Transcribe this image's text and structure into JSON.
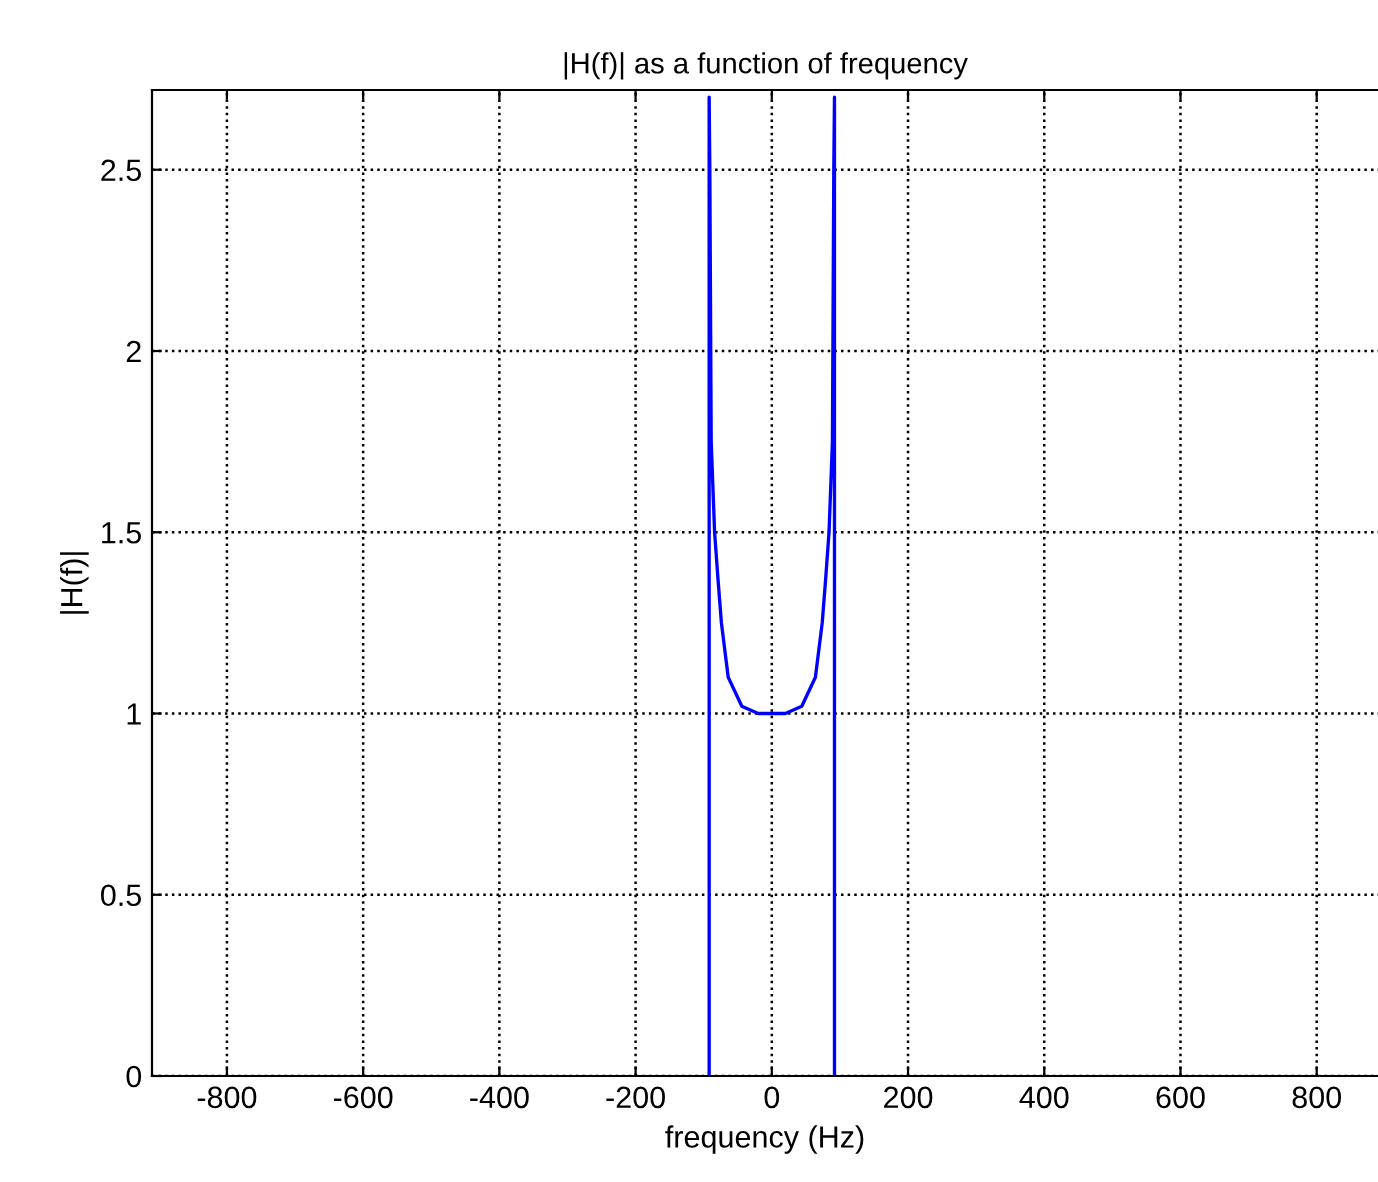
{
  "chart_data": {
    "type": "line",
    "title": "|H(f)| as a function of frequency",
    "xlabel": "frequency (Hz)",
    "ylabel": "|H(f)|",
    "series": [
      {
        "color": "#0000ff",
        "x": [
          -92,
          -92,
          -91,
          -89,
          -84,
          -79,
          -74,
          -64,
          -44,
          -20,
          0,
          20,
          44,
          64,
          74,
          79,
          84,
          89,
          91,
          92,
          92
        ],
        "values": [
          0,
          2.7,
          2.5,
          1.75,
          1.5,
          1.37,
          1.25,
          1.1,
          1.02,
          1.0,
          1.0,
          1.0,
          1.02,
          1.1,
          1.25,
          1.37,
          1.5,
          1.75,
          2.5,
          2.7,
          0
        ]
      }
    ],
    "xlim": [
      -910,
      890
    ],
    "ylim": [
      0,
      2.72
    ],
    "xticks": [
      -800,
      -600,
      -400,
      -200,
      0,
      200,
      400,
      600,
      800
    ],
    "yticks": [
      0,
      0.5,
      1,
      1.5,
      2,
      2.5
    ],
    "grid": true,
    "line_style": "solid",
    "marker": "none"
  }
}
